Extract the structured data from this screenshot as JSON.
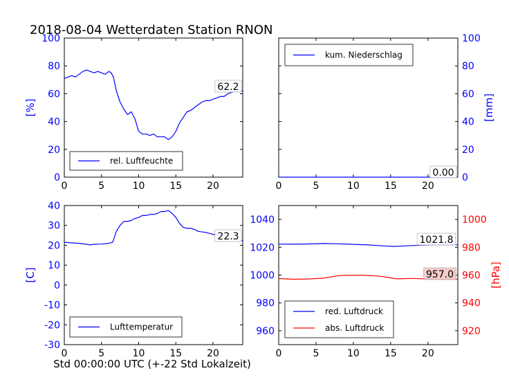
{
  "title": "2018-08-04 Wetterdaten Station RNON",
  "xlabel": "Std 00:00:00 UTC (+-22 Std Lokalzeit)",
  "colors": {
    "blue": "#0000ff",
    "red": "#ff0000",
    "black": "#000000"
  },
  "chart_data": [
    {
      "id": "humidity",
      "type": "line",
      "xlim": [
        0,
        24
      ],
      "ylim": [
        0,
        100
      ],
      "xticks": [
        0,
        5,
        10,
        15,
        20
      ],
      "yticks": [
        0,
        20,
        40,
        60,
        80,
        100
      ],
      "ylabel": "[%]",
      "axis_side": "left",
      "legend": "lower-left",
      "series": [
        {
          "name": "rel. Luftfeuchte",
          "color": "#0000ff",
          "x": [
            0,
            0.5,
            1,
            1.5,
            2,
            2.5,
            3,
            3.5,
            4,
            4.5,
            5,
            5.5,
            6,
            6.3,
            6.6,
            7,
            7.5,
            8,
            8.5,
            9,
            9.5,
            10,
            10.5,
            11,
            11.5,
            12,
            12.5,
            13,
            13.5,
            14,
            14.5,
            15,
            15.5,
            16,
            16.5,
            17,
            17.5,
            18,
            18.5,
            19,
            19.5,
            20,
            20.5,
            21,
            21.5,
            22,
            22.5,
            23,
            23.5,
            24
          ],
          "y": [
            71,
            72,
            73,
            72,
            74,
            76,
            77,
            76,
            75,
            76,
            75,
            74,
            76,
            75,
            72,
            62,
            54,
            49,
            45,
            47,
            42,
            33,
            31,
            31,
            30,
            31,
            29,
            29,
            29,
            27,
            29,
            33,
            39,
            43,
            47,
            48,
            50,
            52,
            54,
            55,
            55,
            56,
            57,
            58,
            58,
            60,
            61,
            62,
            62,
            62
          ]
        }
      ],
      "value_label": "62.2"
    },
    {
      "id": "precip",
      "type": "line",
      "xlim": [
        0,
        24
      ],
      "ylim": [
        0,
        100
      ],
      "xticks": [
        0,
        5,
        10,
        15,
        20
      ],
      "yticks": [
        0,
        20,
        40,
        60,
        80,
        100
      ],
      "ylabel": "[mm]",
      "axis_side": "right",
      "legend": "upper-left",
      "series": [
        {
          "name": "kum. Niederschlag",
          "color": "#0000ff",
          "x": [
            0,
            24
          ],
          "y": [
            0,
            0
          ]
        }
      ],
      "value_label": "0.00"
    },
    {
      "id": "temperature",
      "type": "line",
      "xlim": [
        0,
        24
      ],
      "ylim": [
        -30,
        40
      ],
      "xticks": [
        0,
        5,
        10,
        15,
        20
      ],
      "yticks": [
        -30,
        -20,
        -10,
        0,
        10,
        20,
        30,
        40
      ],
      "ylabel": "[C]",
      "axis_side": "left",
      "legend": "lower-left",
      "series": [
        {
          "name": "Lufttemperatur",
          "color": "#0000ff",
          "x": [
            0,
            1,
            2,
            3,
            3.5,
            4,
            5,
            6,
            6.5,
            7,
            7.5,
            8,
            8.5,
            9,
            9.5,
            10,
            10.5,
            11,
            11.5,
            12,
            12.5,
            13,
            13.5,
            14,
            14.5,
            15,
            15.5,
            16,
            16.5,
            17,
            17.5,
            18,
            19,
            20,
            21,
            22,
            23,
            24
          ],
          "y": [
            21.5,
            21.2,
            21,
            20.5,
            20.2,
            20.5,
            20.6,
            21,
            21.5,
            27,
            30,
            32,
            32,
            32.5,
            33.5,
            34,
            35,
            35,
            35.5,
            35.5,
            36,
            37,
            37,
            37.5,
            36,
            34,
            31,
            29,
            28.5,
            28.5,
            28,
            27,
            26.5,
            25.5,
            25,
            24,
            23,
            22.3
          ]
        }
      ],
      "value_label": "22.3"
    },
    {
      "id": "pressure",
      "type": "line",
      "xlim": [
        0,
        24
      ],
      "ylim": [
        950,
        1050
      ],
      "ylim_right": [
        910,
        1010
      ],
      "xticks": [
        0,
        5,
        10,
        15,
        20
      ],
      "yticks": [
        960,
        980,
        1000,
        1020,
        1040
      ],
      "yticks_right": [
        920,
        940,
        960,
        980,
        1000
      ],
      "ylabel_right": "[hPa]",
      "legend": "lower-left",
      "series": [
        {
          "name": "red. Luftdruck",
          "color": "#0000ff",
          "axis": "left",
          "x": [
            0,
            2,
            4,
            6,
            8,
            10,
            12,
            14,
            15.5,
            17,
            19,
            21,
            24
          ],
          "y": [
            1022.3,
            1022.2,
            1022.4,
            1022.7,
            1022.5,
            1022.1,
            1021.7,
            1021.0,
            1020.6,
            1021.0,
            1021.5,
            1021.8,
            1021.8
          ]
        },
        {
          "name": "abs. Luftdruck",
          "color": "#ff0000",
          "axis": "right",
          "x": [
            0,
            2,
            4,
            6,
            7,
            8,
            9,
            10,
            11,
            12,
            13,
            14,
            15,
            15.5,
            16,
            18,
            20,
            22,
            24
          ],
          "y": [
            957.5,
            957.0,
            957.2,
            957.8,
            958.7,
            959.6,
            959.8,
            959.8,
            959.9,
            959.7,
            959.4,
            958.9,
            958.0,
            957.5,
            957.3,
            957.6,
            957.2,
            957.0,
            957.0
          ]
        }
      ],
      "value_labels": [
        "1021.8",
        "957.0"
      ]
    }
  ]
}
